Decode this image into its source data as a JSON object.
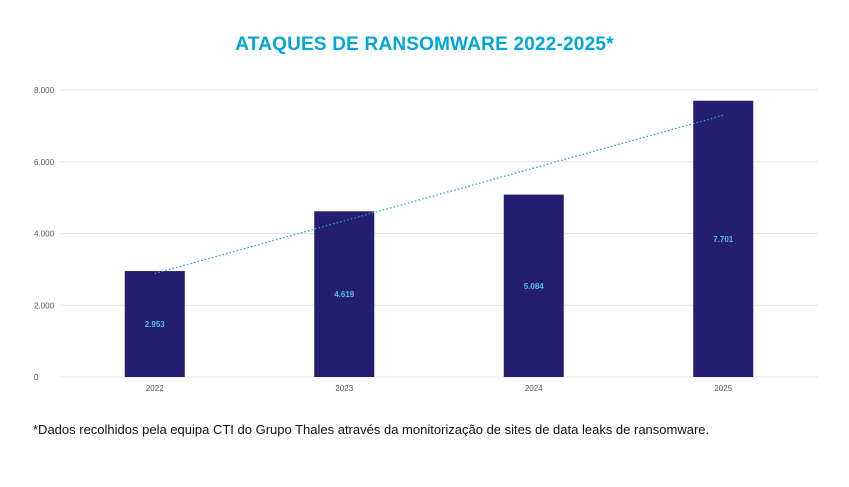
{
  "colors": {
    "title": "#00a7d6",
    "bar": "#251d72",
    "trend": "#1ea7d9",
    "data_label": "#4fc3ea",
    "grid": "#e3e3e3"
  },
  "chart_data": {
    "type": "bar",
    "title": "ATAQUES DE RANSOMWARE 2022-2025*",
    "xlabel": "",
    "ylabel": "",
    "categories": [
      "2022",
      "2023",
      "2024",
      "2025"
    ],
    "values": [
      2953,
      4619,
      5084,
      7701
    ],
    "value_labels": [
      "2.953",
      "4.619",
      "5.084",
      "7.701"
    ],
    "ylim": [
      0,
      8000
    ],
    "yticks": [
      0,
      2000,
      4000,
      6000,
      8000
    ],
    "ytick_labels": [
      "0",
      "2.000",
      "4.000",
      "6.000",
      "8.000"
    ],
    "grid": true,
    "legend": "none",
    "trendline": "linear, dotted"
  },
  "footnote": "*Dados recolhidos pela equipa CTI do Grupo Thales através da monitorização de sites de data leaks de ransomware."
}
